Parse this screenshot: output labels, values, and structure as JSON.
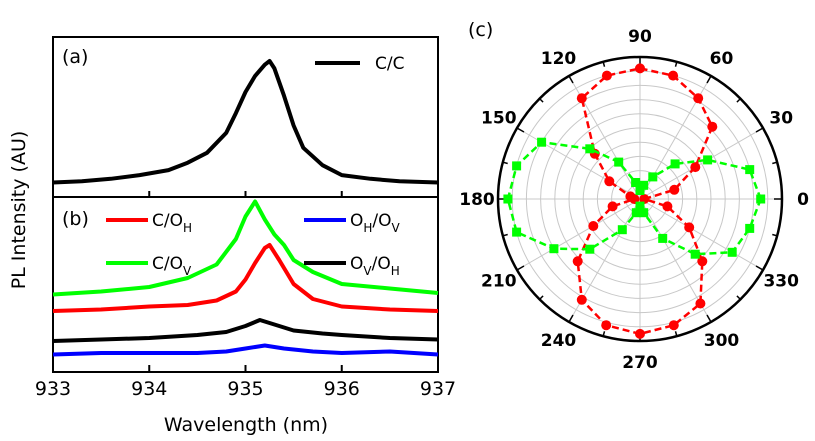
{
  "figure": {
    "panel_labels": [
      "(a)",
      "(b)",
      "(c)"
    ]
  },
  "chart_data": [
    {
      "type": "line",
      "panel": "(a)",
      "xlabel": "Wavelength (nm)",
      "ylabel": "PL Intensity (AU)",
      "xlim": [
        933,
        937
      ],
      "x_ticks": [
        "933",
        "934",
        "935",
        "936",
        "937"
      ],
      "grid": false,
      "legend": {
        "placement": "top-right"
      },
      "series": [
        {
          "name": "C/C",
          "color": "#000000",
          "x": [
            933.0,
            933.3,
            933.6,
            933.9,
            934.2,
            934.4,
            934.6,
            934.8,
            934.9,
            935.0,
            935.1,
            935.2,
            935.25,
            935.3,
            935.4,
            935.5,
            935.6,
            935.8,
            936.0,
            936.3,
            936.6,
            937.0
          ],
          "y": [
            0.02,
            0.03,
            0.05,
            0.08,
            0.12,
            0.18,
            0.26,
            0.42,
            0.58,
            0.75,
            0.88,
            0.97,
            1.0,
            0.94,
            0.72,
            0.48,
            0.3,
            0.16,
            0.08,
            0.05,
            0.03,
            0.02
          ]
        }
      ]
    },
    {
      "type": "line",
      "panel": "(b)",
      "xlabel": "Wavelength (nm)",
      "ylabel": "PL Intensity (AU)",
      "xlim": [
        933,
        937
      ],
      "x_ticks": [
        "933",
        "934",
        "935",
        "936",
        "937"
      ],
      "grid": false,
      "legend": {
        "placement": "top",
        "columns": 2
      },
      "series": [
        {
          "name": "C/O_H",
          "label_main": "C/O",
          "label_sub": "H",
          "color": "#ff0000",
          "x": [
            933.0,
            933.5,
            934.0,
            934.4,
            934.7,
            934.9,
            935.0,
            935.1,
            935.2,
            935.25,
            935.35,
            935.5,
            935.7,
            936.0,
            936.5,
            937.0
          ],
          "y": [
            0.34,
            0.35,
            0.37,
            0.38,
            0.41,
            0.47,
            0.55,
            0.66,
            0.76,
            0.78,
            0.68,
            0.52,
            0.42,
            0.37,
            0.35,
            0.34
          ]
        },
        {
          "name": "C/O_V",
          "label_main": "C/O",
          "label_sub": "V",
          "color": "#00ff00",
          "x": [
            933.0,
            933.5,
            934.0,
            934.4,
            934.7,
            934.9,
            935.0,
            935.1,
            935.2,
            935.3,
            935.4,
            935.5,
            935.7,
            936.0,
            936.5,
            937.0
          ],
          "y": [
            0.45,
            0.47,
            0.5,
            0.56,
            0.65,
            0.82,
            0.97,
            1.07,
            0.95,
            0.85,
            0.78,
            0.68,
            0.6,
            0.52,
            0.49,
            0.46
          ]
        },
        {
          "name": "O_H/O_V",
          "label_main": "O",
          "label_sub": "H",
          "label_main2": "/O",
          "label_sub2": "V",
          "color": "#0000ff",
          "x": [
            933.0,
            933.5,
            934.0,
            934.5,
            934.8,
            935.0,
            935.2,
            935.4,
            935.7,
            936.0,
            936.5,
            937.0
          ],
          "y": [
            0.05,
            0.06,
            0.06,
            0.06,
            0.07,
            0.09,
            0.11,
            0.09,
            0.07,
            0.06,
            0.07,
            0.05
          ]
        },
        {
          "name": "O_V/O_H",
          "label_main": "O",
          "label_sub": "V",
          "label_main2": "/O",
          "label_sub2": "H",
          "color": "#000000",
          "x": [
            933.0,
            933.5,
            934.0,
            934.5,
            934.8,
            935.0,
            935.15,
            935.3,
            935.5,
            935.8,
            936.0,
            936.5,
            937.0
          ],
          "y": [
            0.14,
            0.15,
            0.16,
            0.18,
            0.2,
            0.24,
            0.28,
            0.25,
            0.21,
            0.19,
            0.18,
            0.16,
            0.15
          ]
        }
      ]
    },
    {
      "type": "scatter",
      "panel": "(c)",
      "subtype": "polar",
      "angle_ticks": [
        "0",
        "30",
        "60",
        "90",
        "120",
        "150",
        "180",
        "210",
        "240",
        "270",
        "300",
        "330"
      ],
      "grid": true,
      "series": [
        {
          "name": "red",
          "color": "#ff0000",
          "marker": "circle",
          "theta_deg": [
            0,
            15,
            30,
            45,
            60,
            75,
            90,
            105,
            120,
            135,
            150,
            165,
            180,
            195,
            210,
            225,
            240,
            255,
            270,
            285,
            300,
            315,
            330,
            345
          ],
          "r": [
            0.03,
            0.25,
            0.45,
            0.72,
            0.82,
            0.9,
            0.92,
            0.9,
            0.82,
            0.45,
            0.25,
            0.07,
            0.04,
            0.2,
            0.38,
            0.62,
            0.82,
            0.92,
            0.95,
            0.92,
            0.85,
            0.62,
            0.4,
            0.2
          ]
        },
        {
          "name": "green",
          "color": "#00ff00",
          "marker": "square",
          "theta_deg": [
            0,
            15,
            30,
            45,
            60,
            75,
            90,
            105,
            120,
            135,
            150,
            165,
            180,
            195,
            210,
            225,
            240,
            255,
            270,
            285,
            300,
            315,
            330,
            345
          ],
          "r": [
            0.85,
            0.8,
            0.55,
            0.35,
            0.18,
            0.1,
            0.06,
            0.12,
            0.3,
            0.5,
            0.8,
            0.9,
            0.93,
            0.9,
            0.7,
            0.5,
            0.25,
            0.1,
            0.05,
            0.1,
            0.32,
            0.55,
            0.75,
            0.8
          ]
        }
      ]
    }
  ]
}
